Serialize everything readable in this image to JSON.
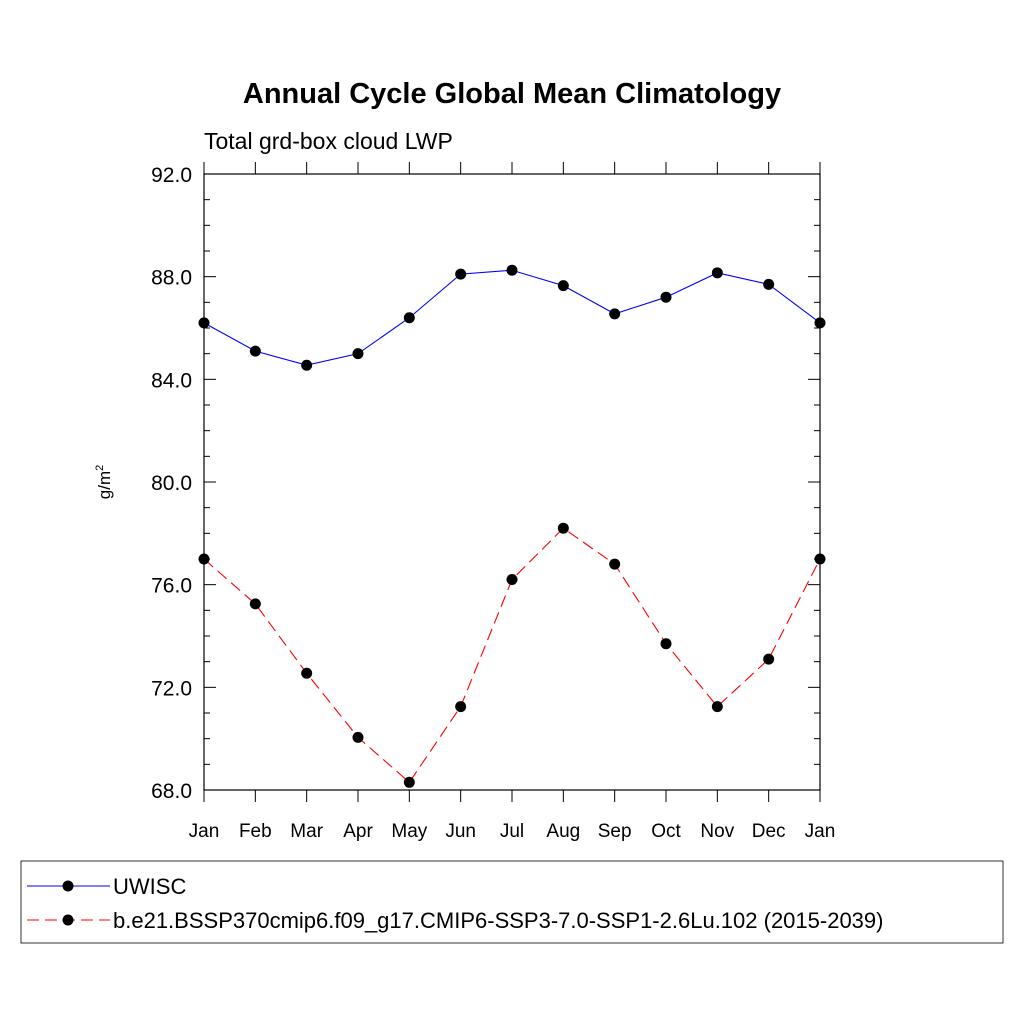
{
  "chart_data": {
    "type": "line",
    "title": "Annual Cycle Global Mean Climatology",
    "subtitle": "Total grd-box cloud LWP",
    "ylabel": "g/m",
    "ylabel_superscript": "2",
    "xlabel": "",
    "categories": [
      "Jan",
      "Feb",
      "Mar",
      "Apr",
      "May",
      "Jun",
      "Jul",
      "Aug",
      "Sep",
      "Oct",
      "Nov",
      "Dec",
      "Jan"
    ],
    "ylim": [
      68.0,
      92.0
    ],
    "yticks": [
      "68.0",
      "72.0",
      "76.0",
      "80.0",
      "84.0",
      "88.0",
      "92.0"
    ],
    "grid": false,
    "legend_position": "bottom",
    "series": [
      {
        "name": "UWISC",
        "color": "#0000ff",
        "dash": "solid",
        "values": [
          86.2,
          85.1,
          84.55,
          85.0,
          86.4,
          88.1,
          88.25,
          87.65,
          86.55,
          87.2,
          88.15,
          87.7,
          86.2
        ]
      },
      {
        "name": "b.e21.BSSP370cmip6.f09_g17.CMIP6-SSP3-7.0-SSP1-2.6Lu.102 (2015-2039)",
        "color": "#ff0000",
        "dash": "dashed",
        "values": [
          77.0,
          75.25,
          72.55,
          70.05,
          68.3,
          71.25,
          76.2,
          78.2,
          76.8,
          73.7,
          71.25,
          73.1,
          77.0
        ]
      }
    ]
  }
}
